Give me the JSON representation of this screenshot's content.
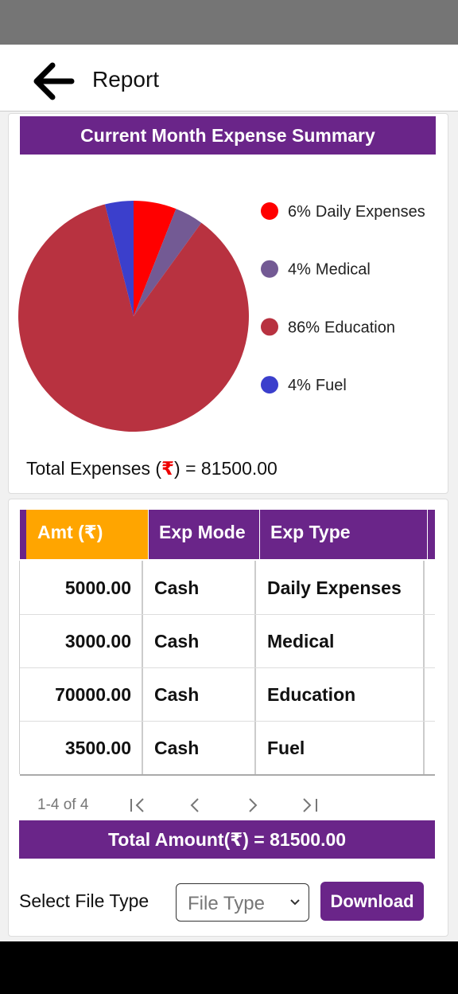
{
  "header": {
    "title": "Report"
  },
  "chart_data": {
    "type": "pie",
    "title": "Current Month Expense Summary",
    "categories": [
      "Daily Expenses",
      "Medical",
      "Education",
      "Fuel"
    ],
    "values": [
      6,
      4,
      86,
      4
    ],
    "value_labels": [
      "6%",
      "4%",
      "86%",
      "4%"
    ],
    "colors": [
      "#ff0000",
      "#735a94",
      "#b83240",
      "#3b3fcc"
    ]
  },
  "summary": {
    "label_before": "Total Expenses (",
    "currency": "₹",
    "label_after": ") = ",
    "amount": "81500.00"
  },
  "table": {
    "headers": [
      "Amt (₹)",
      "Exp Mode",
      "Exp Type"
    ],
    "rows": [
      [
        "5000.00",
        "Cash",
        "Daily Expenses"
      ],
      [
        "3000.00",
        "Cash",
        "Medical"
      ],
      [
        "70000.00",
        "Cash",
        "Education"
      ],
      [
        "3500.00",
        "Cash",
        "Fuel"
      ]
    ],
    "pagination": "1-4 of 4"
  },
  "total_amount": "Total Amount(₹) = 81500.00",
  "download": {
    "label": "Select File Type",
    "placeholder": "File Type",
    "button": "Download"
  }
}
